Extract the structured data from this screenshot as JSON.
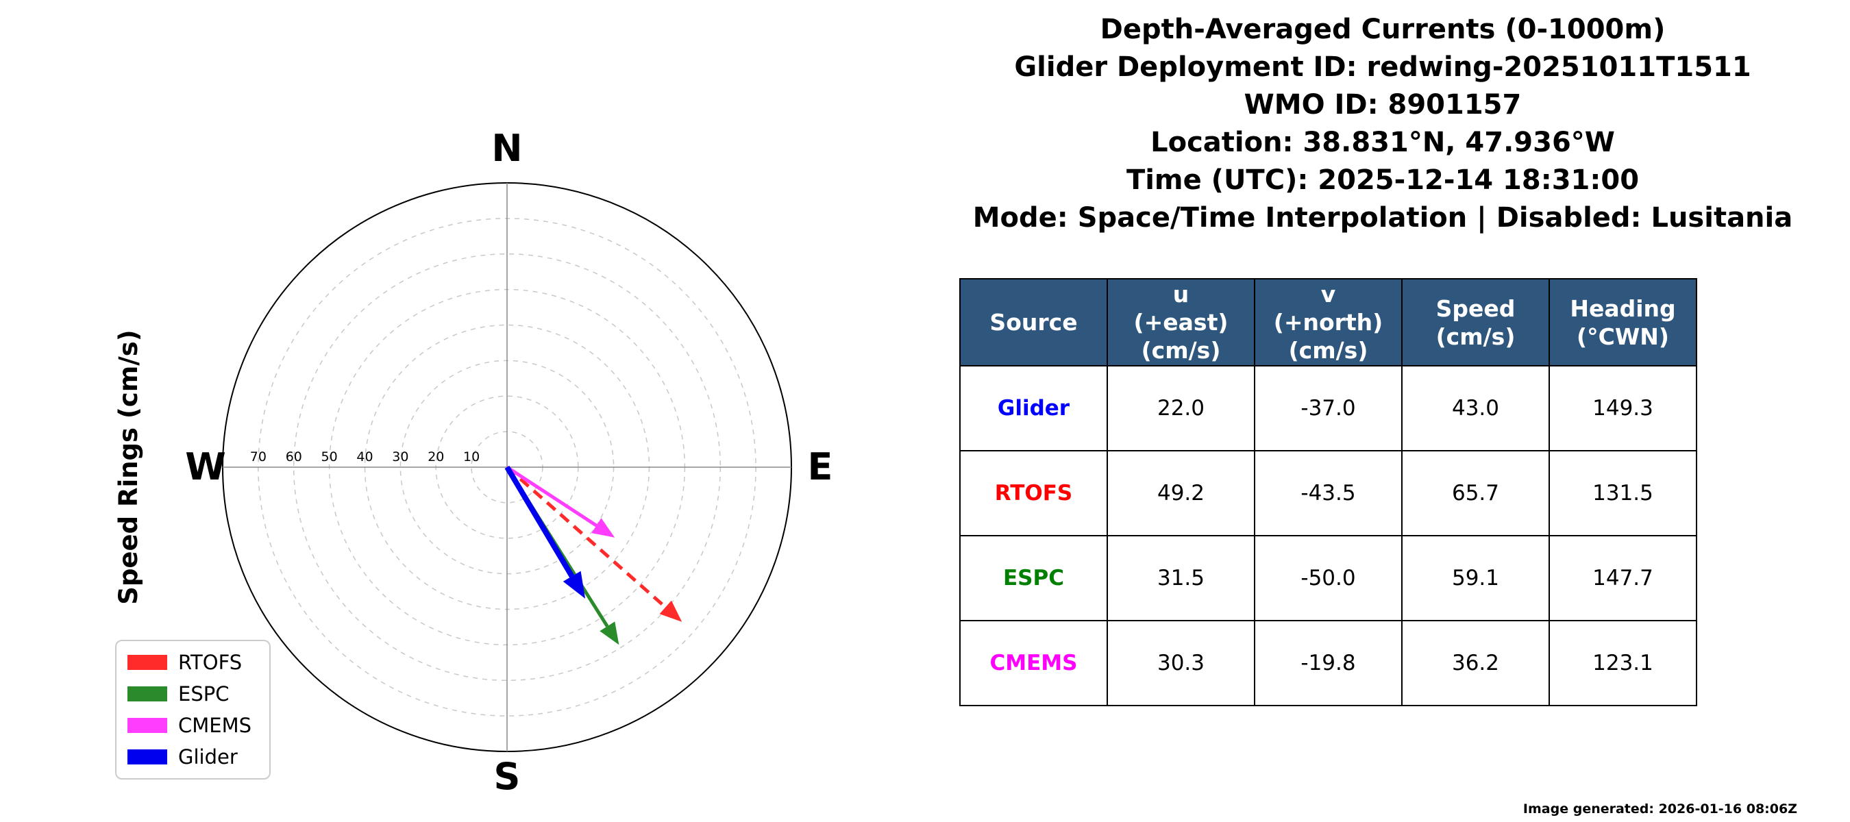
{
  "header": {
    "title_lines": [
      "Depth-Averaged Currents (0-1000m)",
      "Glider Deployment ID: redwing-20251011T1511",
      "WMO ID: 8901157",
      "Location: 38.831°N, 47.936°W",
      "Time (UTC): 2025-12-14 18:31:00",
      "Mode: Space/Time Interpolation | Disabled: Lusitania"
    ]
  },
  "chart_data": {
    "type": "polar_vector",
    "title": "Depth-Averaged Currents (0-1000m)",
    "axis_label": "Speed Rings (cm/s)",
    "compass_labels": {
      "north": "N",
      "east": "E",
      "south": "S",
      "west": "W"
    },
    "ring_ticks": [
      10,
      20,
      30,
      40,
      50,
      60,
      70
    ],
    "rmax": 80,
    "grid": "dashed-rings",
    "legend_position": "lower-left",
    "series": [
      {
        "name": "RTOFS",
        "color": "#ff2a2a",
        "line_style": "dashed",
        "u": 49.2,
        "v": -43.5,
        "speed": 65.7,
        "heading": 131.5
      },
      {
        "name": "ESPC",
        "color": "#2a8b2a",
        "line_style": "solid",
        "u": 31.5,
        "v": -50.0,
        "speed": 59.1,
        "heading": 147.7
      },
      {
        "name": "CMEMS",
        "color": "#ff3dff",
        "line_style": "solid",
        "u": 30.3,
        "v": -19.8,
        "speed": 36.2,
        "heading": 123.1
      },
      {
        "name": "Glider",
        "color": "#0000ee",
        "line_style": "solid",
        "u": 22.0,
        "v": -37.0,
        "speed": 43.0,
        "heading": 149.3
      }
    ],
    "legend": [
      "RTOFS",
      "ESPC",
      "CMEMS",
      "Glider"
    ]
  },
  "table": {
    "header_bg": "#2f577d",
    "columns": [
      "Source",
      "u\n(+east)\n(cm/s)",
      "v\n(+north)\n(cm/s)",
      "Speed\n(cm/s)",
      "Heading\n(°CWN)"
    ],
    "rows": [
      {
        "source": "Glider",
        "color": "#0000ff",
        "u": "22.0",
        "v": "-37.0",
        "speed": "43.0",
        "heading": "149.3"
      },
      {
        "source": "RTOFS",
        "color": "#ff0000",
        "u": "49.2",
        "v": "-43.5",
        "speed": "65.7",
        "heading": "131.5"
      },
      {
        "source": "ESPC",
        "color": "#008000",
        "u": "31.5",
        "v": "-50.0",
        "speed": "59.1",
        "heading": "147.7"
      },
      {
        "source": "CMEMS",
        "color": "#ff00ff",
        "u": "30.3",
        "v": "-19.8",
        "speed": "36.2",
        "heading": "123.1"
      }
    ]
  },
  "footer": {
    "generated": "Image generated: 2026-01-16 08:06Z"
  }
}
